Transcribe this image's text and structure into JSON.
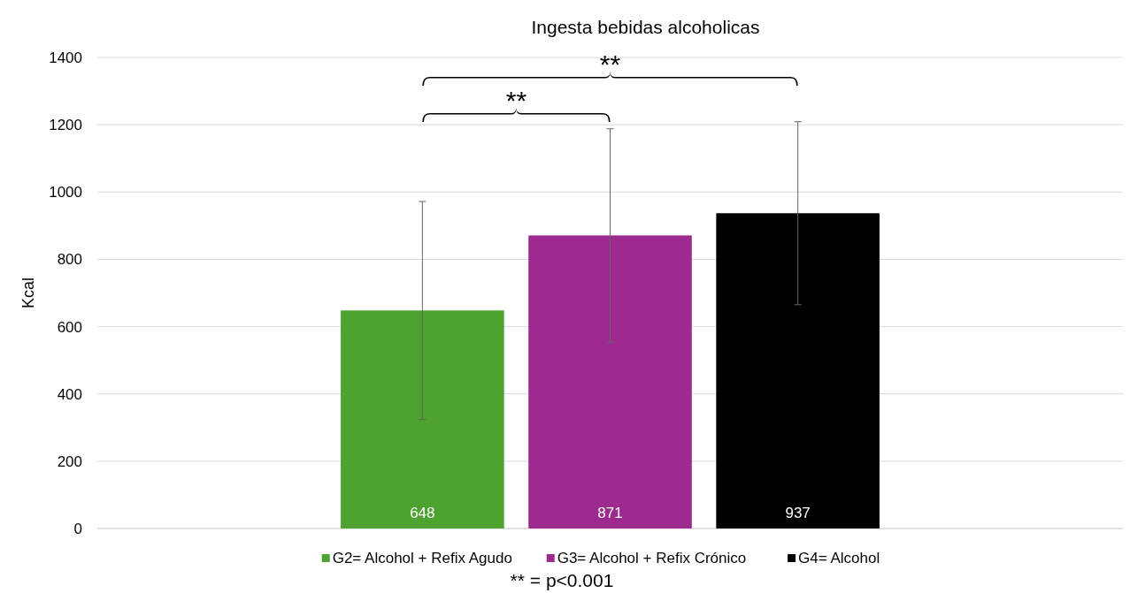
{
  "chart_data": {
    "type": "bar",
    "title": "Ingesta bebidas alcoholicas",
    "ylabel": "Kcal",
    "categories": [
      null
    ],
    "series": [
      {
        "name": "G2= Alcohol + Refix Agudo",
        "color": "#4ea22f",
        "values": [
          648
        ],
        "errors": [
          324
        ]
      },
      {
        "name": "G3= Alcohol + Refix Crónico",
        "color": "#9c2a8f",
        "values": [
          871
        ],
        "errors": [
          317
        ]
      },
      {
        "name": "G4= Alcohol",
        "color": "#000000",
        "values": [
          937
        ],
        "errors": [
          272
        ]
      }
    ],
    "ylim": [
      0,
      1400
    ],
    "yticks": [
      0,
      200,
      400,
      600,
      800,
      1000,
      1200,
      1400
    ],
    "grid": "y",
    "legend": "bottom",
    "data_labels": true,
    "annotations": [
      "**",
      "**",
      "** = p<0.001"
    ]
  }
}
